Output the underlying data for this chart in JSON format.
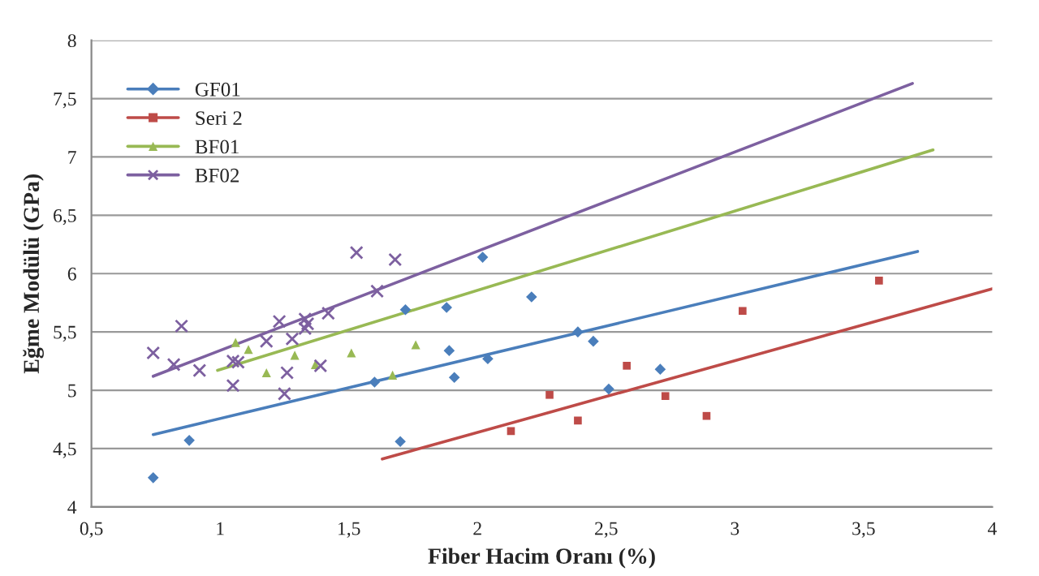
{
  "chart_data": {
    "type": "scatter",
    "xlabel": "Fiber Hacim Oranı (%)",
    "ylabel": "Eğme Modülü (GPa)",
    "xlim": [
      0.5,
      4
    ],
    "ylim": [
      4,
      8
    ],
    "xticks": [
      {
        "value": 0.5,
        "label": "0,5"
      },
      1,
      {
        "value": 1.5,
        "label": "1,5"
      },
      2,
      {
        "value": 2.5,
        "label": "2,5"
      },
      3,
      {
        "value": 3.5,
        "label": "3,5"
      },
      4
    ],
    "yticks": [
      4,
      {
        "value": 4.5,
        "label": "4,5"
      },
      5,
      {
        "value": 5.5,
        "label": "5,5"
      },
      6,
      {
        "value": 6.5,
        "label": "6,5"
      },
      7,
      {
        "value": 7.5,
        "label": "7,5"
      },
      8
    ],
    "grid": "y",
    "legend": "top left",
    "series": [
      {
        "name": "GF01",
        "marker": "diamond",
        "color": "#4a7ebb",
        "x": [
          0.74,
          0.88,
          1.6,
          1.7,
          1.72,
          1.88,
          1.89,
          1.91,
          2.02,
          2.04,
          2.21,
          2.39,
          2.45,
          2.51,
          2.71
        ],
        "values": [
          4.25,
          4.57,
          5.07,
          4.56,
          5.69,
          5.71,
          5.34,
          5.11,
          6.14,
          5.27,
          5.8,
          5.5,
          5.42,
          5.01,
          5.18
        ]
      },
      {
        "name": "Seri 2",
        "marker": "square",
        "color": "#be4b48",
        "x": [
          2.13,
          2.28,
          2.39,
          2.58,
          2.73,
          2.89,
          3.03,
          3.56
        ],
        "values": [
          4.65,
          4.96,
          4.74,
          5.21,
          4.95,
          4.78,
          5.68,
          5.94
        ]
      },
      {
        "name": "BF01",
        "marker": "triangle",
        "color": "#98b954",
        "x": [
          1.06,
          1.11,
          1.18,
          1.29,
          1.37,
          1.51,
          1.67,
          1.76
        ],
        "values": [
          5.41,
          5.35,
          5.15,
          5.3,
          5.22,
          5.32,
          5.13,
          5.39
        ]
      },
      {
        "name": "BF02",
        "marker": "cross",
        "color": "#7d60a0",
        "x": [
          0.74,
          0.82,
          0.85,
          0.92,
          1.05,
          1.05,
          1.07,
          1.18,
          1.23,
          1.25,
          1.26,
          1.28,
          1.33,
          1.34,
          1.33,
          1.39,
          1.42,
          1.53,
          1.61,
          1.68
        ],
        "values": [
          5.32,
          5.22,
          5.55,
          5.17,
          5.04,
          5.25,
          5.24,
          5.42,
          5.59,
          4.97,
          5.15,
          5.44,
          5.61,
          5.57,
          5.53,
          5.21,
          5.66,
          6.18,
          5.85,
          6.12
        ]
      },
      {
        "type": "line",
        "color": "#4a7ebb",
        "x": [
          0.74,
          3.71
        ],
        "values": [
          4.62,
          6.19
        ]
      },
      {
        "type": "line",
        "color": "#be4b48",
        "x": [
          1.63,
          4.0
        ],
        "values": [
          4.41,
          5.87
        ]
      },
      {
        "type": "line",
        "color": "#98b954",
        "x": [
          0.99,
          3.77
        ],
        "values": [
          5.17,
          7.06
        ]
      },
      {
        "type": "line",
        "color": "#7d60a0",
        "x": [
          0.74,
          3.69
        ],
        "values": [
          5.12,
          7.63
        ]
      }
    ]
  }
}
